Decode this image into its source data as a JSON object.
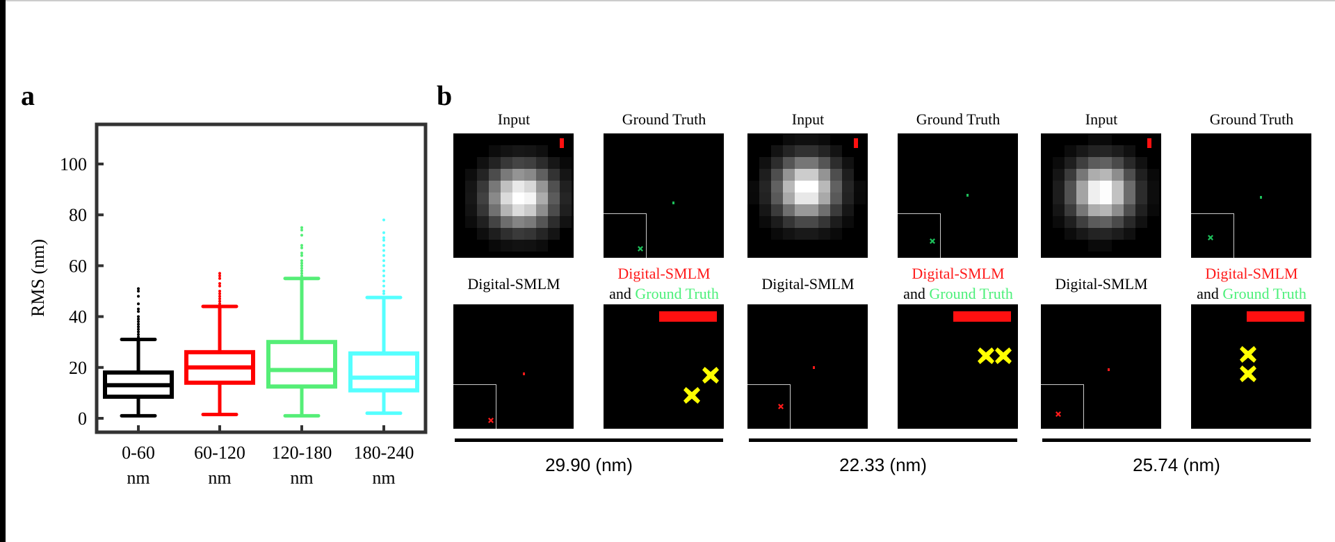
{
  "panel_a_label": "a",
  "panel_b_label": "b",
  "chart_data": {
    "type": "boxplot",
    "title": "",
    "xlabel": "",
    "ylabel": "RMS (nm)",
    "ylim": [
      -5,
      115
    ],
    "yticks": [
      0,
      20,
      40,
      60,
      80,
      100
    ],
    "categories": [
      [
        "0-60",
        "nm"
      ],
      [
        "60-120",
        "nm"
      ],
      [
        "120-180",
        "nm"
      ],
      [
        "180-240",
        "nm"
      ]
    ],
    "series": [
      {
        "name": "0-60 nm",
        "color": "#000000",
        "whisker_low": 1,
        "q1": 8.5,
        "median": 13,
        "q3": 18,
        "whisker_high": 31,
        "outliers": [
          32,
          33,
          34,
          35,
          36,
          37,
          38,
          39,
          40,
          42,
          43,
          45,
          48,
          50,
          51
        ]
      },
      {
        "name": "60-120 nm",
        "color": "#ff0000",
        "whisker_low": 1.5,
        "q1": 14,
        "median": 20,
        "q3": 26,
        "whisker_high": 44,
        "outliers": [
          45,
          46,
          47,
          48,
          49,
          50,
          52,
          53,
          55,
          56,
          57
        ]
      },
      {
        "name": "120-180 nm",
        "color": "#55ee77",
        "whisker_low": 1,
        "q1": 12.5,
        "median": 19,
        "q3": 30,
        "whisker_high": 55,
        "outliers": [
          56,
          57,
          58,
          59,
          60,
          61,
          62,
          64,
          65,
          67,
          68,
          72,
          74,
          75
        ]
      },
      {
        "name": "180-240 nm",
        "color": "#55ffff",
        "whisker_low": 2,
        "q1": 11,
        "median": 16,
        "q3": 25.5,
        "whisker_high": 47.5,
        "outliers": [
          49,
          50,
          52,
          54,
          56,
          58,
          60,
          62,
          64,
          66,
          68,
          70,
          71,
          73,
          78
        ]
      }
    ]
  },
  "panel_b": {
    "groups": [
      {
        "input": "Input",
        "ground_truth": "Ground Truth",
        "digital_smlm": "Digital-SMLM",
        "merged_red": "Digital-SMLM",
        "merged_and": "and",
        "merged_green": "Ground Truth",
        "rms": "29.90 (nm)"
      },
      {
        "input": "Input",
        "ground_truth": "Ground Truth",
        "digital_smlm": "Digital-SMLM",
        "merged_red": "Digital-SMLM",
        "merged_and": "and",
        "merged_green": "Ground Truth",
        "rms": "22.33 (nm)"
      },
      {
        "input": "Input",
        "ground_truth": "Ground Truth",
        "digital_smlm": "Digital-SMLM",
        "merged_red": "Digital-SMLM",
        "merged_and": "and",
        "merged_green": "Ground Truth",
        "rms": "25.74 (nm)"
      }
    ]
  }
}
